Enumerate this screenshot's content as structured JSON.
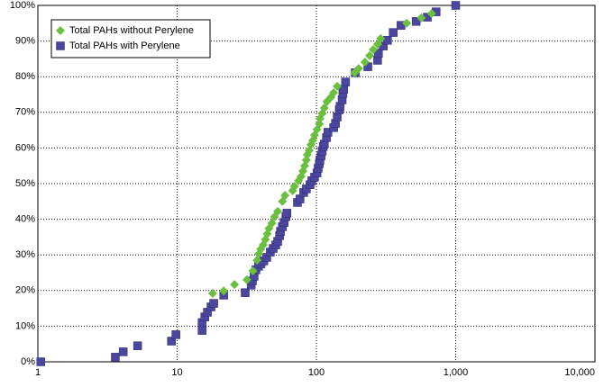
{
  "chart_data": {
    "type": "scatter",
    "log_x": true,
    "grid": true,
    "legend": "upper-left",
    "xlim": [
      1,
      10000
    ],
    "xticks": [
      1,
      10,
      100,
      {
        "value": 1000,
        "label": "1,000"
      },
      {
        "value": 10000,
        "label": "10,000"
      }
    ],
    "ylim": [
      0,
      100
    ],
    "yticks": [
      {
        "value": 0,
        "label": "0%"
      },
      {
        "value": 10,
        "label": "10%"
      },
      {
        "value": 20,
        "label": "20%"
      },
      {
        "value": 30,
        "label": "30%"
      },
      {
        "value": 40,
        "label": "40%"
      },
      {
        "value": 50,
        "label": "50%"
      },
      {
        "value": 60,
        "label": "60%"
      },
      {
        "value": 70,
        "label": "70%"
      },
      {
        "value": 80,
        "label": "80%"
      },
      {
        "value": 90,
        "label": "90%"
      },
      {
        "value": 100,
        "label": "100%"
      }
    ],
    "series": [
      {
        "name": "Total PAHs without Perylene",
        "color": "#6abf3f",
        "marker": "diamond",
        "x": [
          18,
          21.6,
          25.8,
          31.7,
          35,
          37.5,
          38.6,
          39.8,
          41.5,
          43,
          44.3,
          45.6,
          47.9,
          50,
          52.7,
          57,
          59.5,
          67.5,
          69.5,
          74.4,
          77.5,
          80,
          82.3,
          84.7,
          86,
          88.7,
          91.3,
          94,
          97,
          101,
          105,
          106,
          110,
          114,
          119,
          127,
          133,
          141,
          188,
          201,
          223,
          241,
          256,
          275,
          289,
          445,
          566,
          671
        ],
        "values": [
          19.2,
          19.9,
          21.7,
          23,
          25.5,
          28.5,
          30.3,
          31.6,
          32.8,
          34.3,
          35.9,
          37.4,
          38.9,
          40.7,
          42.2,
          45,
          46.7,
          48,
          49.2,
          50.8,
          52,
          53.5,
          55,
          56.6,
          58.1,
          59.3,
          60.9,
          62.1,
          63.6,
          65.2,
          66.7,
          68.2,
          69.7,
          71.2,
          73,
          74.2,
          75.5,
          77.3,
          81.1,
          82.3,
          84.1,
          85.9,
          87.6,
          89.1,
          90.7,
          95,
          96.5,
          97.7
        ]
      },
      {
        "name": "Total PAHs with Perylene",
        "color": "#4b479e",
        "marker": "square",
        "x": [
          1.05,
          3.6,
          4.1,
          5.2,
          9.1,
          9.8,
          15.1,
          15.1,
          15.8,
          16.5,
          17.5,
          18.3,
          21.6,
          30.8,
          34,
          34.7,
          35.7,
          36.8,
          38.4,
          40,
          41.9,
          44,
          46.7,
          48.9,
          51.1,
          52.7,
          54.4,
          55.2,
          57,
          58.6,
          60.4,
          61.4,
          73.1,
          76.3,
          81,
          84.7,
          90,
          92.7,
          97,
          101,
          103,
          105,
          106,
          108,
          110,
          112,
          114,
          118,
          121,
          133,
          137,
          141,
          146,
          148,
          153,
          155,
          157,
          162,
          190,
          234,
          275,
          279,
          302,
          324,
          356,
          405,
          520,
          626,
          723,
          1000
        ],
        "values": [
          0,
          1.3,
          2.8,
          4.5,
          5.8,
          7.6,
          8.8,
          11,
          12.6,
          13.9,
          15.4,
          16.4,
          18.7,
          19.4,
          21.5,
          22.7,
          24,
          25.8,
          26.8,
          27.5,
          28.3,
          29.3,
          30.8,
          31.8,
          32.8,
          33.8,
          35.4,
          36.6,
          37.9,
          39.1,
          40.7,
          41.7,
          44.7,
          45.7,
          47.5,
          48.5,
          49.7,
          50.8,
          51.8,
          53,
          54.3,
          55.6,
          56.6,
          57.8,
          59.1,
          60.4,
          61.1,
          62.9,
          64.4,
          65.7,
          66.9,
          68.7,
          70.7,
          71.7,
          73.5,
          75.3,
          76.5,
          78.5,
          81.1,
          82.8,
          84.6,
          86.6,
          88.6,
          90.2,
          92.4,
          94.4,
          95.5,
          96.7,
          98.2,
          100
        ]
      }
    ]
  }
}
